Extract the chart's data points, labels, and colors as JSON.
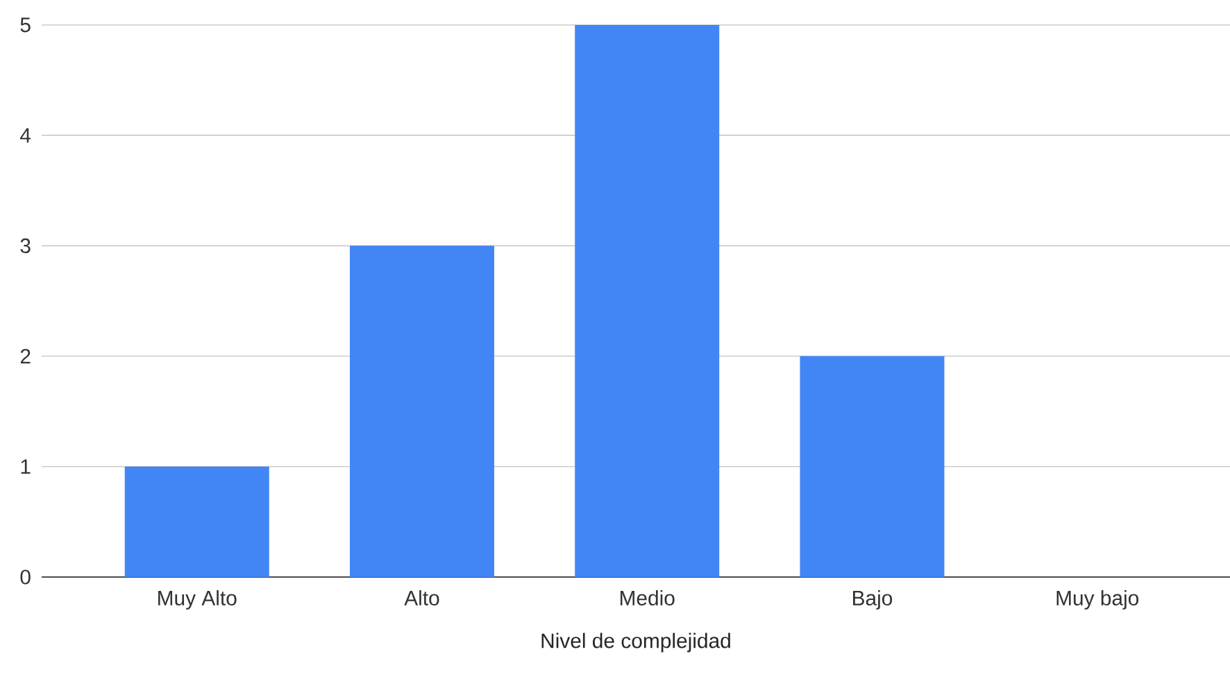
{
  "chart_data": {
    "type": "bar",
    "xlabel": "Nivel de complejidad",
    "categories": [
      "Muy Alto",
      "Alto",
      "Medio",
      "Bajo",
      "Muy bajo"
    ],
    "values": [
      1,
      3,
      5,
      2,
      0
    ],
    "color": "#4285f4",
    "ylim": [
      0,
      5
    ],
    "yticks": [
      0,
      1,
      2,
      3,
      4,
      5
    ],
    "grid": "y"
  }
}
